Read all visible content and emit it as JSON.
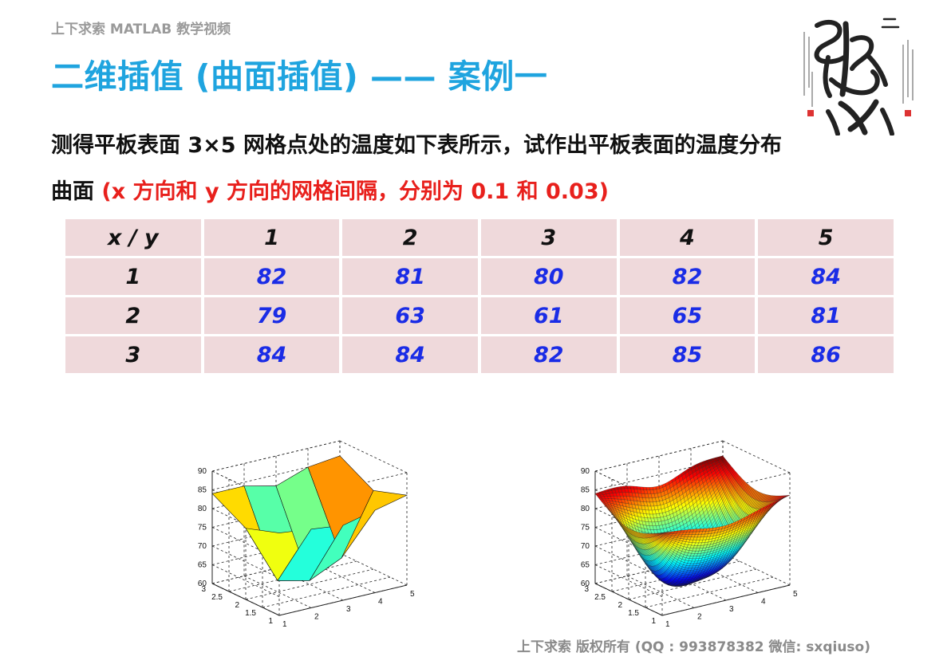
{
  "header": {
    "series_label": "上下求索 MATLAB 教学视频",
    "title": "二维插值 (曲面插值) —— 案例一"
  },
  "description": {
    "line1": "测得平板表面 3×5 网格点处的温度如下表所示，试作出平板表面的温度分布",
    "line2_prefix": "曲面 ",
    "line2_red": "(x 方向和 y 方向的网格间隔，分别为 0.1 和 0.03)"
  },
  "table": {
    "header": [
      "x / y",
      "1",
      "2",
      "3",
      "4",
      "5"
    ],
    "rows": [
      {
        "x": "1",
        "values": [
          "82",
          "81",
          "80",
          "82",
          "84"
        ]
      },
      {
        "x": "2",
        "values": [
          "79",
          "63",
          "61",
          "65",
          "81"
        ]
      },
      {
        "x": "3",
        "values": [
          "84",
          "84",
          "82",
          "85",
          "86"
        ]
      }
    ]
  },
  "plots": {
    "z_ticks": [
      "60",
      "65",
      "70",
      "75",
      "80",
      "85",
      "90"
    ],
    "y_ticks": [
      "1",
      "1.5",
      "2",
      "2.5",
      "3"
    ],
    "x_ticks": [
      "1",
      "2",
      "3",
      "4",
      "5"
    ]
  },
  "colors": {
    "title": "#1fa4df",
    "highlight": "#e8201c",
    "table_value": "#1a2ce6",
    "table_cell": "#efd9db"
  },
  "footer": "上下求索  版权所有  (QQ : 993878382   微信: sxqiuso)"
}
